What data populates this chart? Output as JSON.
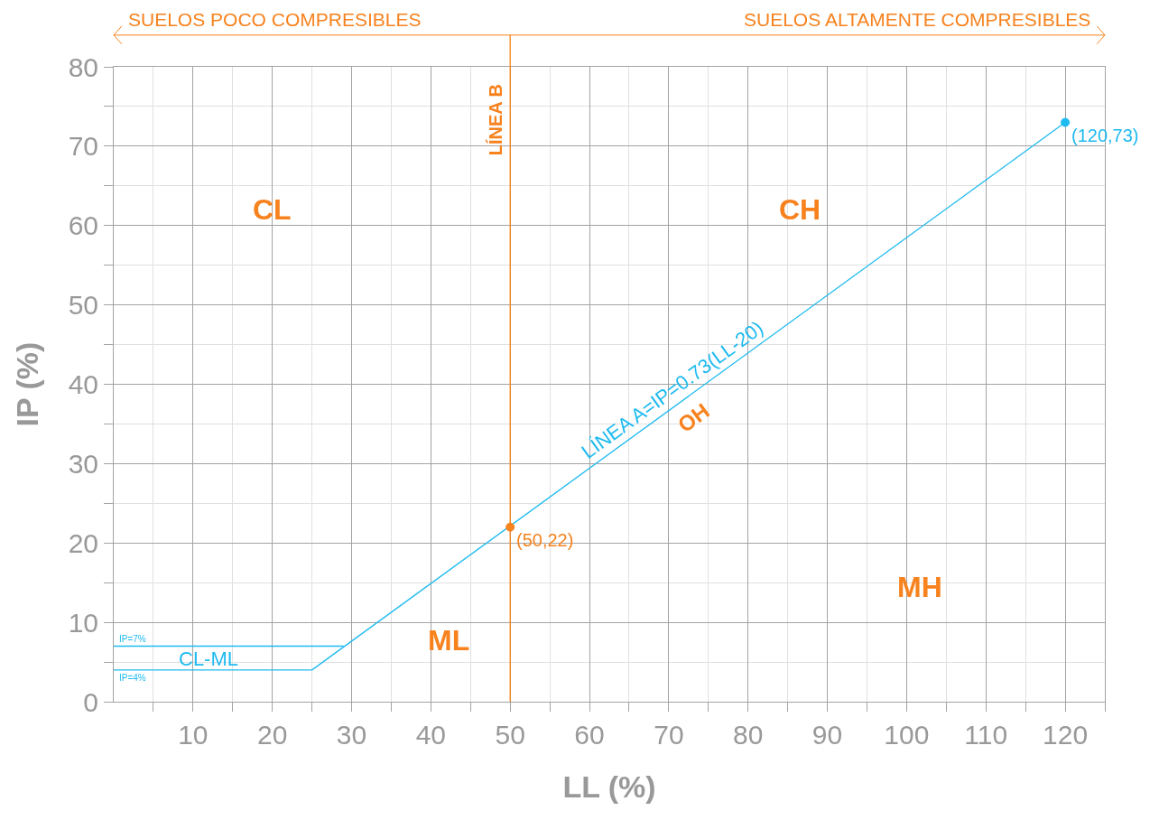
{
  "chart_data": {
    "type": "line",
    "xlabel": "LL (%)",
    "ylabel": "IP (%)",
    "xlim": [
      0,
      125
    ],
    "xticks": [
      10,
      20,
      30,
      40,
      50,
      60,
      70,
      80,
      90,
      100,
      110,
      120
    ],
    "ylim": [
      0,
      80
    ],
    "yticks": [
      0,
      10,
      20,
      30,
      40,
      50,
      60,
      70,
      80
    ],
    "grid": true,
    "line_style": "solid",
    "series": [
      {
        "name": "IP=4%",
        "color": "#1ebaf0",
        "x": [
          0,
          25
        ],
        "values": [
          4,
          4
        ]
      },
      {
        "name": "IP=7%",
        "color": "#1ebaf0",
        "x": [
          0,
          29
        ],
        "values": [
          7,
          7
        ]
      },
      {
        "name": "LÍNEA A=IP=0.73(LL-20)",
        "color": "#1ebaf0",
        "x": [
          25,
          120
        ],
        "values": [
          4,
          73
        ]
      },
      {
        "type": "scatter",
        "marker": "circle",
        "color": "#f7821e",
        "x": [
          50
        ],
        "values": [
          22
        ]
      },
      {
        "type": "scatter",
        "marker": "circle",
        "color": "#1ebaf0",
        "x": [
          120
        ],
        "values": [
          73
        ]
      }
    ],
    "ref_lines": [
      {
        "axis": "x",
        "value": 50,
        "label": "LÍNEA B",
        "color": "#f7821e"
      }
    ],
    "annotations": [
      "SUELOS POCO COMPRESIBLES",
      "SUELOS ALTAMENTE COMPRESIBLES",
      {
        "text": "(50,22)",
        "x": 50,
        "y": 22
      },
      {
        "text": "(120,73)",
        "x": 120,
        "y": 73
      },
      "CL",
      "CH",
      "ML",
      "MH",
      "OH",
      "CL-ML"
    ]
  }
}
